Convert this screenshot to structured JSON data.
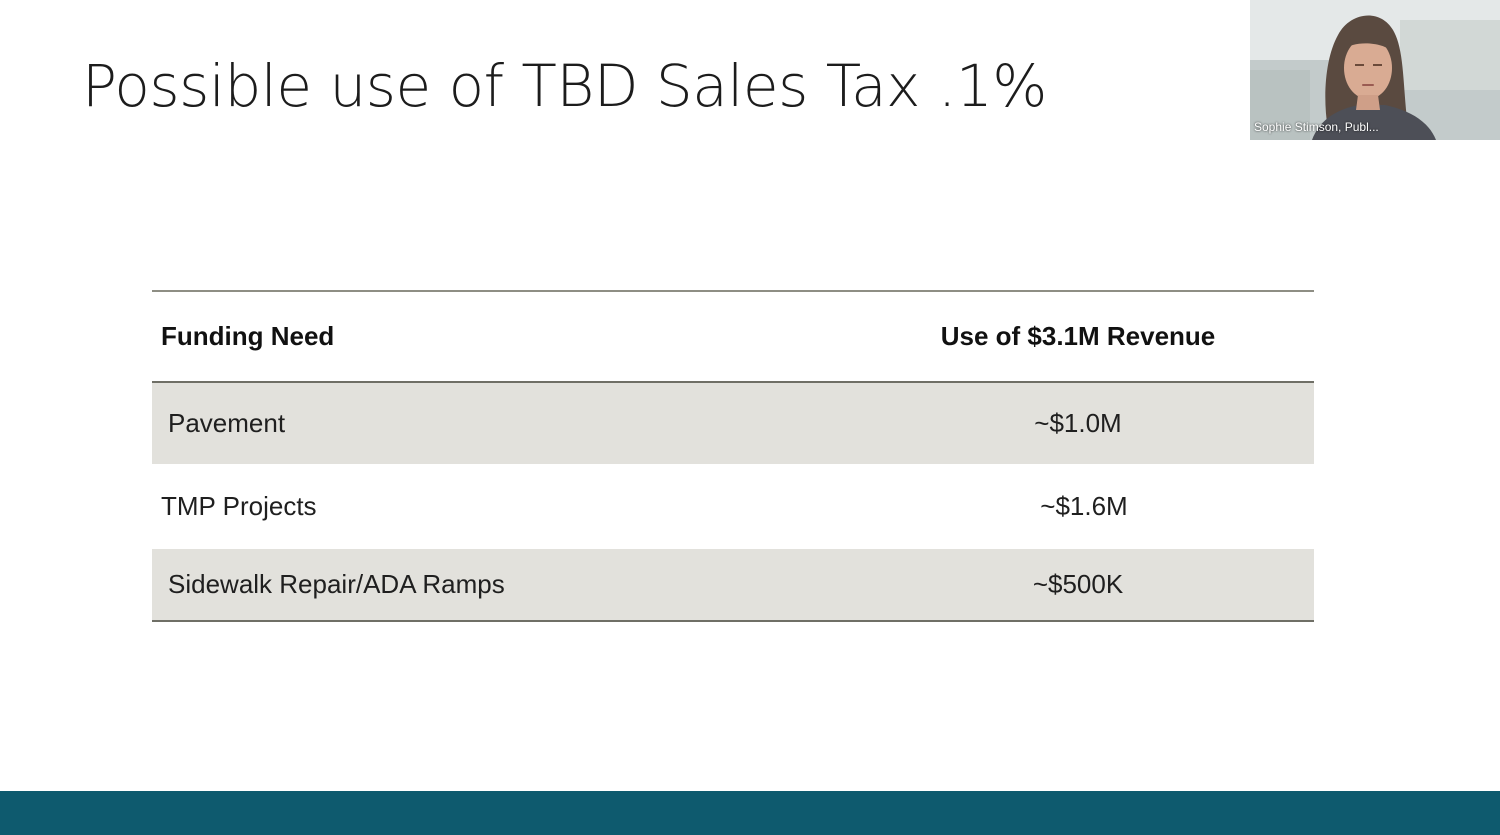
{
  "slide": {
    "title": "Possible use of TBD Sales Tax .1%"
  },
  "table": {
    "headers": {
      "need": "Funding Need",
      "use": "Use of $3.1M Revenue"
    },
    "rows": [
      {
        "need": "Pavement",
        "use": "~$1.0M"
      },
      {
        "need": "TMP Projects",
        "use": "~$1.6M"
      },
      {
        "need": "Sidewalk Repair/ADA Ramps",
        "use": "~$500K"
      }
    ]
  },
  "participant": {
    "name": "Sophie Stimson, Publ..."
  },
  "colors": {
    "footer_band": "#0e5a6e",
    "row_shade": "#e2e1dc",
    "rule": "#6f6f66"
  }
}
